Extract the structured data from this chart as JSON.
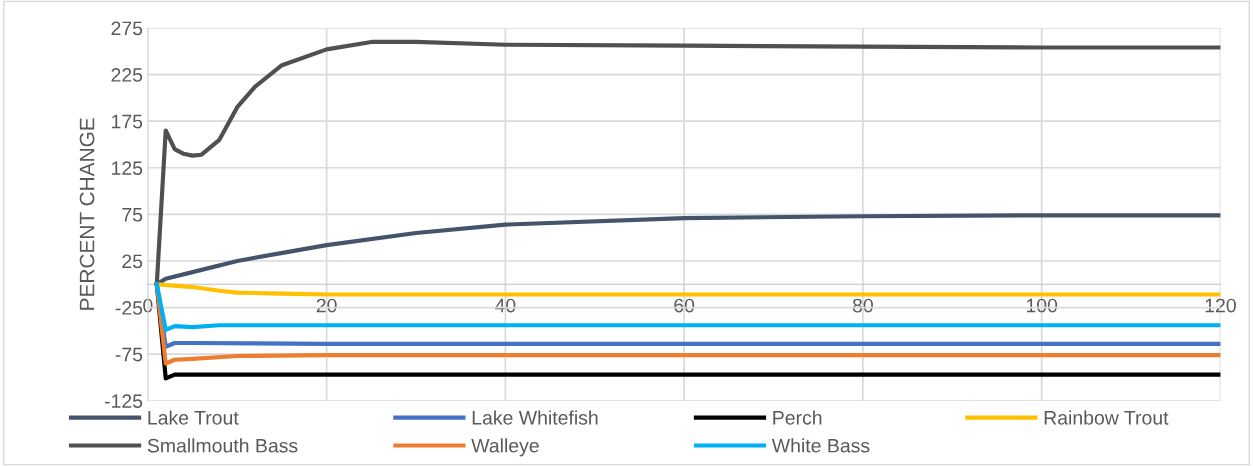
{
  "chart_data": {
    "type": "line",
    "ylabel": "PERCENT CHANGE",
    "xlim": [
      0,
      120
    ],
    "xticks": [
      0,
      20,
      40,
      60,
      80,
      100,
      120
    ],
    "ylim": [
      -125,
      275
    ],
    "yticks": [
      -125,
      -75,
      -25,
      25,
      75,
      125,
      175,
      225,
      275
    ],
    "grid": true,
    "legend": "bottom",
    "marker": "none",
    "line_style": "solid",
    "series": [
      {
        "name": "Lake Trout",
        "color": "#44546a",
        "x": [
          1,
          2,
          5,
          10,
          20,
          30,
          40,
          60,
          80,
          100,
          120
        ],
        "values": [
          0,
          6,
          13,
          25,
          42,
          55,
          64,
          71,
          73,
          74,
          74
        ]
      },
      {
        "name": "Lake Whitefish",
        "color": "#4472c4",
        "x": [
          1,
          2,
          3,
          5,
          20,
          120
        ],
        "values": [
          0,
          -67,
          -63,
          -63,
          -64,
          -64
        ]
      },
      {
        "name": "Perch",
        "color": "#000000",
        "x": [
          1,
          2,
          3,
          5,
          20,
          120
        ],
        "values": [
          0,
          -101,
          -97,
          -97,
          -97,
          -97
        ]
      },
      {
        "name": "Rainbow Trout",
        "color": "#ffc000",
        "x": [
          1,
          5,
          8,
          10,
          15,
          20,
          120
        ],
        "values": [
          0,
          -3,
          -7,
          -9,
          -10,
          -11,
          -11
        ]
      },
      {
        "name": "Smallmouth Bass",
        "color": "#505050",
        "x": [
          1,
          2,
          3,
          4,
          5,
          6,
          8,
          10,
          12,
          15,
          20,
          25,
          30,
          40,
          60,
          80,
          100,
          120
        ],
        "values": [
          0,
          165,
          145,
          140,
          138,
          139,
          155,
          190,
          212,
          235,
          252,
          260,
          260,
          257,
          256,
          255,
          254,
          254
        ]
      },
      {
        "name": "Walleye",
        "color": "#ed7d31",
        "x": [
          1,
          2,
          3,
          5,
          10,
          20,
          120
        ],
        "values": [
          0,
          -85,
          -81,
          -80,
          -77,
          -76,
          -76
        ]
      },
      {
        "name": "White Bass",
        "color": "#00b0f0",
        "x": [
          1,
          2,
          3,
          5,
          8,
          20,
          120
        ],
        "values": [
          0,
          -49,
          -45,
          -46,
          -44,
          -44,
          -44
        ]
      }
    ]
  }
}
